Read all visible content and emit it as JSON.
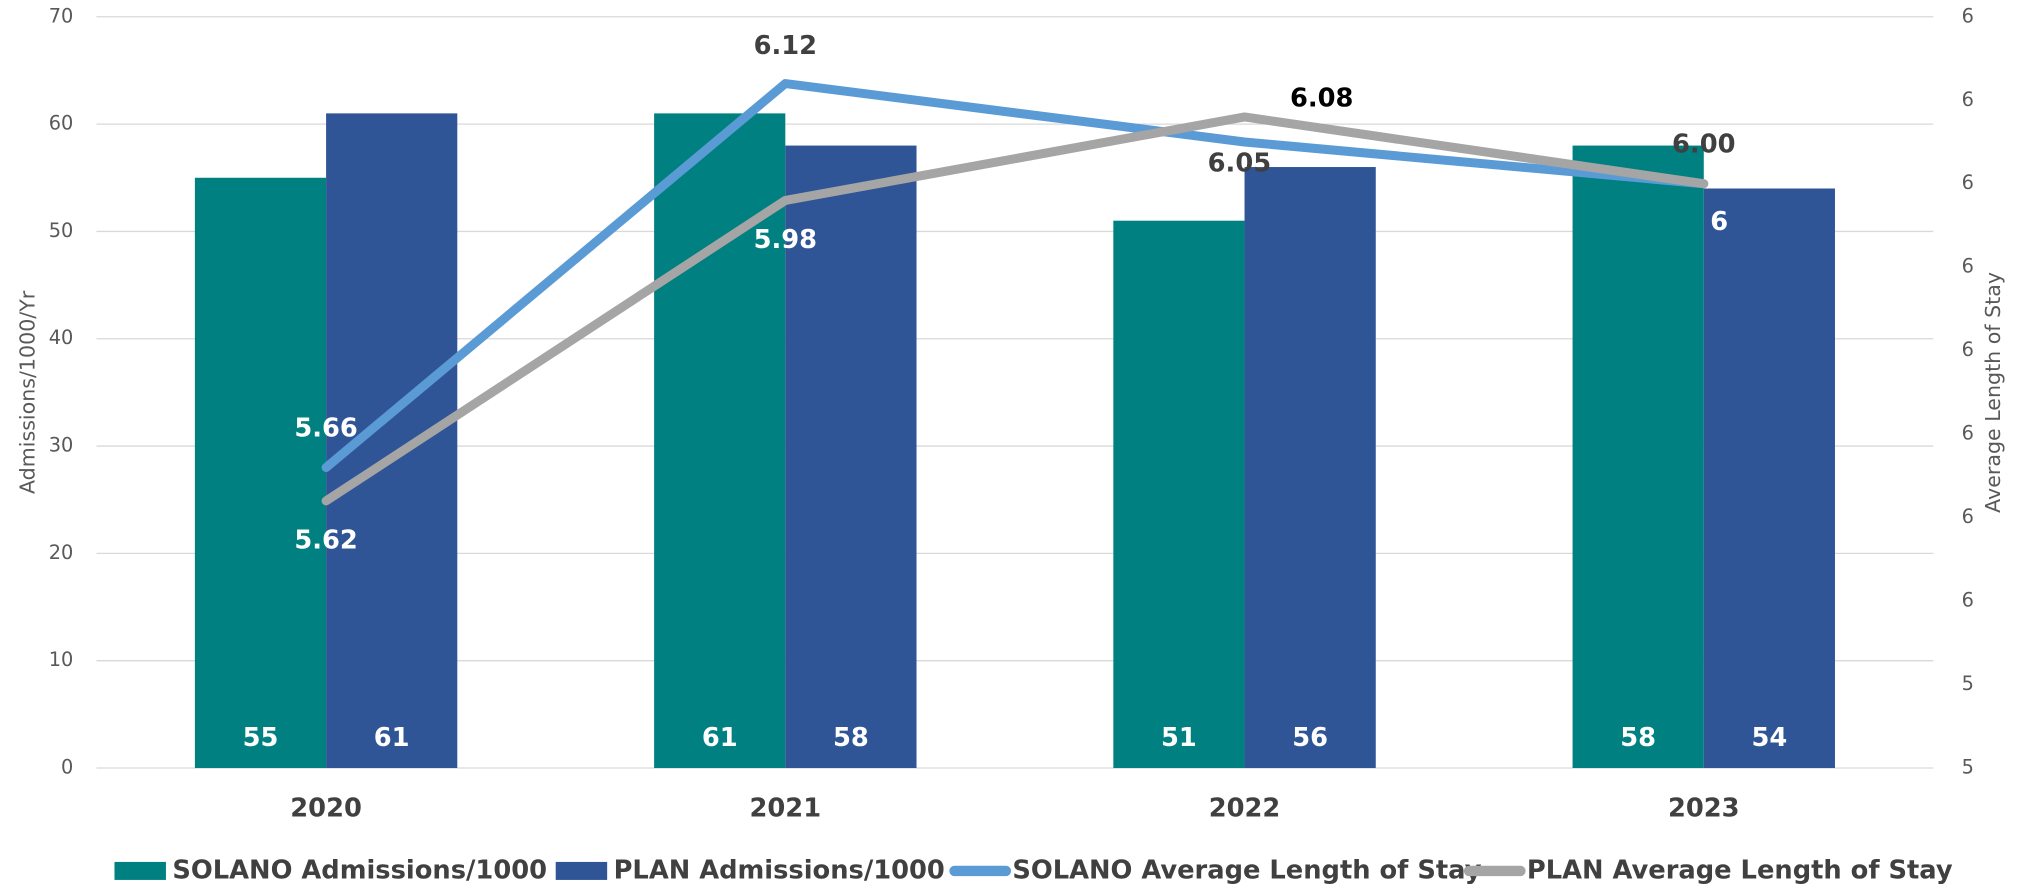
{
  "chart_data": {
    "type": "bar_line",
    "categories": [
      "2020",
      "2021",
      "2022",
      "2023"
    ],
    "ylabel": "Admissions/1000/Yr",
    "y2label": "Average Length of Stay",
    "ylim": [
      0,
      70
    ],
    "yticks": [
      0,
      10,
      20,
      30,
      40,
      50,
      60,
      70
    ],
    "y2lim": [
      5.3,
      6.2
    ],
    "y2ticks": [
      {
        "value": 5.3,
        "label": "5"
      },
      {
        "value": 5.4,
        "label": "5"
      },
      {
        "value": 5.5,
        "label": "6"
      },
      {
        "value": 5.6,
        "label": "6"
      },
      {
        "value": 5.7,
        "label": "6"
      },
      {
        "value": 5.8,
        "label": "6"
      },
      {
        "value": 5.9,
        "label": "6"
      },
      {
        "value": 6.0,
        "label": "6"
      },
      {
        "value": 6.1,
        "label": "6"
      },
      {
        "value": 6.2,
        "label": "6"
      }
    ],
    "grid": true,
    "legend": "bottom",
    "series": [
      {
        "name": "SOLANO Admissions/1000",
        "type": "bar",
        "color": "#008080",
        "values": [
          55,
          61,
          51,
          58
        ]
      },
      {
        "name": "PLAN Admissions/1000",
        "type": "bar",
        "color": "#2f5597",
        "values": [
          61,
          58,
          56,
          54
        ]
      },
      {
        "name": "SOLANO Average Length of Stay",
        "type": "line",
        "axis": "y2",
        "color": "#5b9bd5",
        "values": [
          5.66,
          6.12,
          6.05,
          6.0
        ],
        "value_labels": [
          "5.66",
          "6.12",
          "6.05",
          "6.00"
        ]
      },
      {
        "name": "PLAN Average Length of Stay",
        "type": "line",
        "axis": "y2",
        "color": "#a5a5a5",
        "values": [
          5.62,
          5.98,
          6.08,
          6.0
        ],
        "value_labels": [
          "5.62",
          "5.98",
          "6.08",
          "6"
        ]
      }
    ]
  }
}
